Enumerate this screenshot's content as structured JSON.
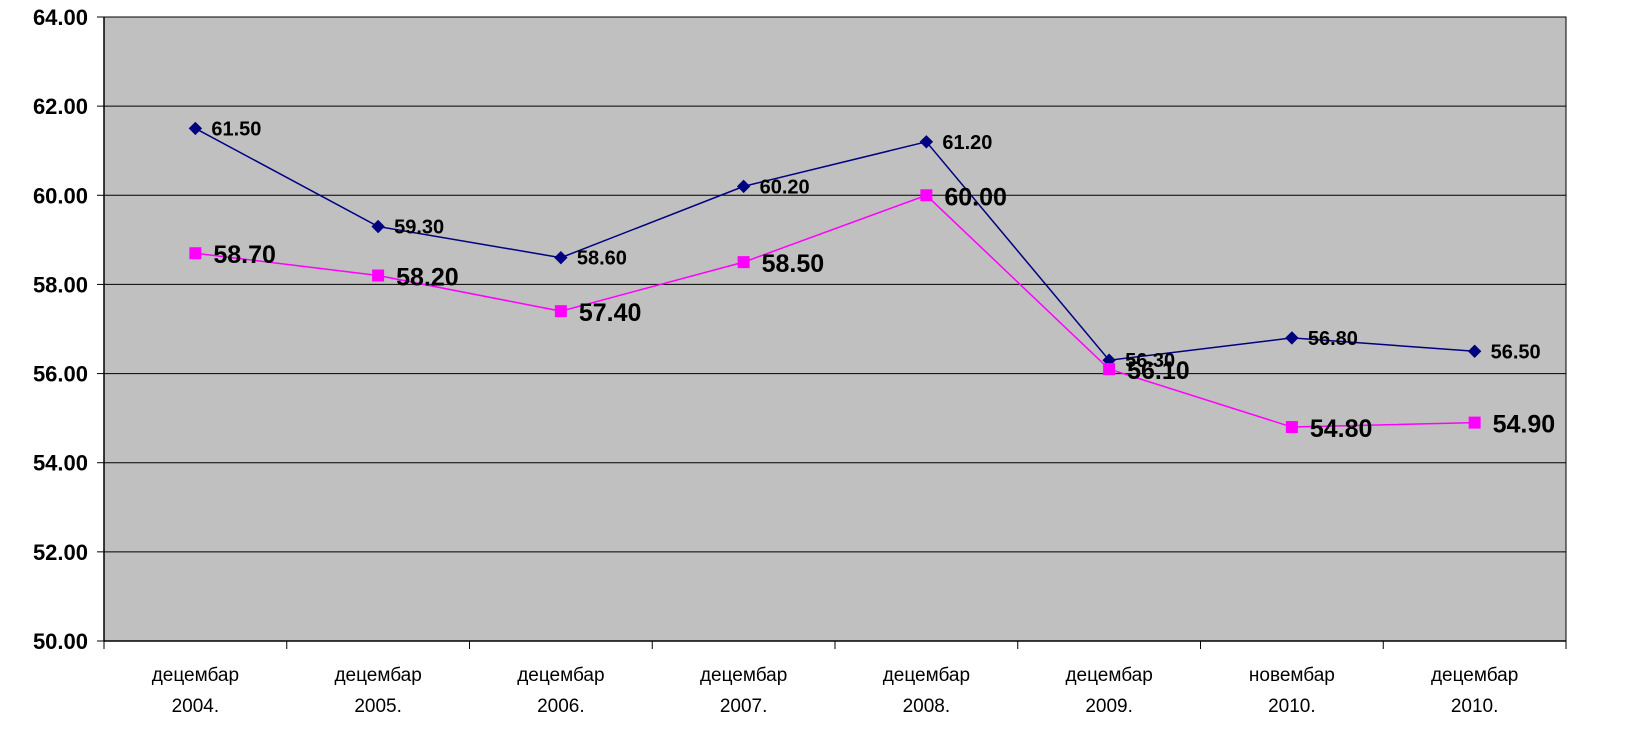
{
  "chart_data": {
    "type": "line",
    "categories": [
      [
        "децембар",
        "2004."
      ],
      [
        "децембар",
        "2005."
      ],
      [
        "децембар",
        "2006."
      ],
      [
        "децембар",
        "2007."
      ],
      [
        "децембар",
        "2008."
      ],
      [
        "децембар",
        "2009."
      ],
      [
        "новембар",
        "2010."
      ],
      [
        "децембар",
        "2010."
      ]
    ],
    "ylim": [
      50,
      64
    ],
    "yticks": [
      "50.00",
      "52.00",
      "54.00",
      "56.00",
      "58.00",
      "60.00",
      "62.00",
      "64.00"
    ],
    "grid": true,
    "legend": "none",
    "series": [
      {
        "values": [
          61.5,
          59.3,
          58.6,
          60.2,
          61.2,
          56.3,
          56.8,
          56.5
        ],
        "labels": [
          "61.50",
          "59.30",
          "58.60",
          "60.20",
          "61.20",
          "56.30",
          "56.80",
          "56.50"
        ],
        "color": "#000080",
        "marker": "diamond"
      },
      {
        "values": [
          58.7,
          58.2,
          57.4,
          58.5,
          60.0,
          56.1,
          54.8,
          54.9
        ],
        "labels": [
          "58.70",
          "58.20",
          "57.40",
          "58.50",
          "60.00",
          "56.10",
          "54.80",
          "54.90"
        ],
        "color": "#FF00FF",
        "marker": "square"
      }
    ],
    "plot_background": "#C0C0C0"
  }
}
